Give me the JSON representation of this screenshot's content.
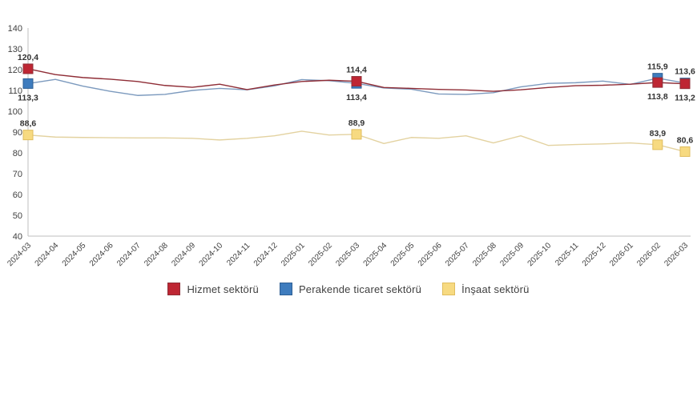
{
  "chart_data": {
    "type": "line",
    "x_labels": [
      "2024-03",
      "2024-04",
      "2024-05",
      "2024-06",
      "2024-07",
      "2024-08",
      "2024-09",
      "2024-10",
      "2024-11",
      "2024-12",
      "2025-01",
      "2025-02",
      "2025-03",
      "2025-04",
      "2025-05",
      "2025-06",
      "2025-07",
      "2025-08",
      "2025-09",
      "2025-10",
      "2025-11",
      "2025-12",
      "2026-01",
      "2026-02",
      "2026-03"
    ],
    "y_axis": {
      "min": 40,
      "max": 140,
      "step": 10,
      "ticks": [
        140,
        130,
        120,
        110,
        100,
        90,
        80,
        70,
        60,
        50,
        40
      ]
    },
    "grid": false,
    "legend_position": "bottom",
    "axis_color": "#bfbfbf",
    "tick_label_color": "#404040",
    "data_label_color": "#333333",
    "series": [
      {
        "name": "İnşaat sektörü",
        "line_color": "#e3d2a0",
        "marker_fill": "#f7da81",
        "marker_border": "#e0bd5e",
        "marker_indices": [
          0,
          12,
          23,
          24
        ],
        "values": [
          88.6,
          87.6,
          87.4,
          87.3,
          87.2,
          87.2,
          87.0,
          86.2,
          87.0,
          88.2,
          90.4,
          88.6,
          88.9,
          84.5,
          87.4,
          87.0,
          88.2,
          84.8,
          88.2,
          83.6,
          84.0,
          84.3,
          84.8,
          83.9,
          80.6
        ]
      },
      {
        "name": "Perakende ticaret sektörü",
        "line_color": "#7c9abe",
        "marker_fill": "#3e7cbe",
        "marker_border": "#2e5f94",
        "marker_indices": [
          0,
          12,
          23,
          24
        ],
        "values": [
          113.3,
          115.3,
          112.1,
          109.6,
          107.6,
          108.1,
          110.0,
          111.0,
          110.3,
          112.2,
          115.2,
          114.7,
          113.4,
          111.2,
          110.6,
          108.3,
          108.1,
          108.9,
          111.7,
          113.4,
          113.7,
          114.5,
          112.9,
          115.9,
          113.6
        ]
      },
      {
        "name": "Hizmet sektörü",
        "line_color": "#8f2d36",
        "marker_fill": "#be2633",
        "marker_border": "#8f2d36",
        "marker_indices": [
          0,
          12,
          23,
          24
        ],
        "values": [
          120.4,
          117.6,
          116.2,
          115.4,
          114.3,
          112.4,
          111.5,
          113.0,
          110.4,
          112.6,
          114.3,
          114.9,
          114.4,
          111.4,
          111.0,
          110.5,
          110.2,
          109.6,
          110.3,
          111.4,
          112.3,
          112.5,
          113.0,
          113.8,
          113.2
        ]
      }
    ],
    "point_labels": [
      {
        "series": 2,
        "index": 0,
        "text": "120,4",
        "pos": "above"
      },
      {
        "series": 1,
        "index": 0,
        "text": "113,3",
        "pos": "below"
      },
      {
        "series": 0,
        "index": 0,
        "text": "88,6",
        "pos": "above"
      },
      {
        "series": 2,
        "index": 12,
        "text": "114,4",
        "pos": "above"
      },
      {
        "series": 1,
        "index": 12,
        "text": "113,4",
        "pos": "below"
      },
      {
        "series": 0,
        "index": 12,
        "text": "88,9",
        "pos": "above"
      },
      {
        "series": 1,
        "index": 23,
        "text": "115,9",
        "pos": "above"
      },
      {
        "series": 2,
        "index": 23,
        "text": "113,8",
        "pos": "below"
      },
      {
        "series": 0,
        "index": 23,
        "text": "83,9",
        "pos": "above"
      },
      {
        "series": 1,
        "index": 24,
        "text": "113,6",
        "pos": "above"
      },
      {
        "series": 2,
        "index": 24,
        "text": "113,2",
        "pos": "below"
      },
      {
        "series": 0,
        "index": 24,
        "text": "80,6",
        "pos": "above"
      }
    ],
    "legend": [
      {
        "label": "Hizmet sektörü",
        "swatch_fill": "#be2633",
        "swatch_border": "#8f2d36"
      },
      {
        "label": "Perakende ticaret sektörü",
        "swatch_fill": "#3e7cbe",
        "swatch_border": "#2e5f94"
      },
      {
        "label": "İnşaat sektörü",
        "swatch_fill": "#f7da81",
        "swatch_border": "#e0bd5e"
      }
    ]
  }
}
